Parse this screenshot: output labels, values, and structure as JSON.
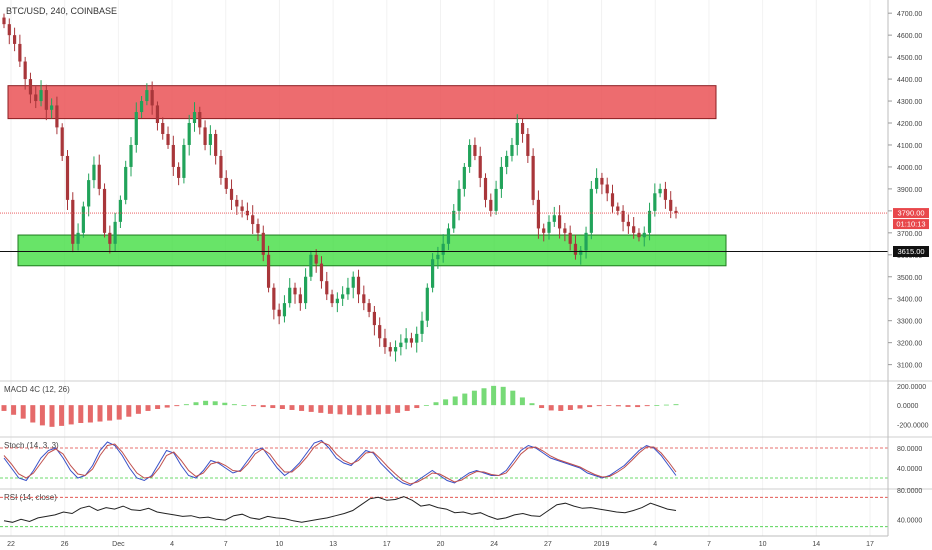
{
  "symbol_title": "BTC/USD, 240, COINBASE",
  "price_labels": {
    "last_price": "3790.00",
    "countdown": "01:10:13",
    "level": "3615.00"
  },
  "colors": {
    "up": "#21a35a",
    "down": "#a8363a",
    "red_zone": "#e8474b",
    "green_zone": "#3ddc3d",
    "stoch_k": "#3850c8",
    "stoch_d": "#c0504d",
    "rsi": "#222222"
  },
  "chart_data": [
    {
      "type": "candlestick",
      "title": "BTC/USD, 240, COINBASE",
      "x_tick_labels": [
        "22",
        "26",
        "Dec",
        "4",
        "7",
        "10",
        "13",
        "17",
        "20",
        "24",
        "27",
        "2019",
        "4",
        "7",
        "10",
        "14",
        "17"
      ],
      "y_ticks": [
        3100,
        3200,
        3300,
        3400,
        3500,
        3600,
        3700,
        3800,
        3900,
        4000,
        4100,
        4200,
        4300,
        4400,
        4500,
        4600,
        4700
      ],
      "y_tick_labels": [
        "3100.00",
        "3200.00",
        "3300.00",
        "3400.00",
        "3500.00",
        "3600.00",
        "3700.00",
        "3800.00",
        "3900.00",
        "4000.00",
        "4100.00",
        "4200.00",
        "4300.00",
        "4400.00",
        "4500.00",
        "4600.00",
        "4700.00"
      ],
      "ylim": [
        3030,
        4760
      ],
      "closes": [
        4650,
        4600,
        4560,
        4480,
        4400,
        4330,
        4300,
        4350,
        4260,
        4280,
        4180,
        4050,
        3850,
        3650,
        3700,
        3820,
        3940,
        4010,
        3900,
        3700,
        3650,
        3750,
        3850,
        4000,
        4100,
        4250,
        4300,
        4350,
        4280,
        4200,
        4150,
        4100,
        4000,
        3950,
        4100,
        4200,
        4250,
        4180,
        4100,
        4150,
        4050,
        3950,
        3900,
        3850,
        3820,
        3800,
        3780,
        3740,
        3700,
        3600,
        3450,
        3350,
        3320,
        3380,
        3450,
        3420,
        3380,
        3500,
        3600,
        3560,
        3480,
        3420,
        3380,
        3400,
        3420,
        3450,
        3500,
        3420,
        3380,
        3340,
        3280,
        3220,
        3180,
        3160,
        3180,
        3200,
        3220,
        3200,
        3240,
        3300,
        3450,
        3580,
        3600,
        3650,
        3720,
        3800,
        3900,
        4000,
        4100,
        4050,
        3950,
        3850,
        3800,
        3900,
        4000,
        4050,
        4100,
        4200,
        4150,
        4050,
        3850,
        3720,
        3700,
        3750,
        3780,
        3720,
        3700,
        3650,
        3600,
        3620,
        3700,
        3900,
        3950,
        3920,
        3880,
        3820,
        3800,
        3750,
        3730,
        3700,
        3680,
        3700,
        3800,
        3880,
        3900,
        3850,
        3800,
        3790
      ],
      "red_zone_price": [
        4220,
        4370
      ],
      "green_zone_price": [
        3550,
        3690
      ],
      "horizontal_levels": [
        3790,
        3615
      ],
      "panes": [
        {
          "name": "MACD 4C (12, 26)",
          "type": "histogram",
          "y_tick_labels": [
            "200.0000",
            "0.0000",
            "-200.0000"
          ],
          "y_ticks": [
            200,
            0,
            -200
          ],
          "ylim": [
            -320,
            240
          ],
          "values": [
            -60,
            -100,
            -140,
            -180,
            -210,
            -225,
            -215,
            -200,
            -185,
            -180,
            -170,
            -160,
            -150,
            -120,
            -90,
            -60,
            -40,
            -25,
            -10,
            10,
            30,
            45,
            40,
            25,
            10,
            0,
            -10,
            -20,
            -30,
            -40,
            -50,
            -60,
            -70,
            -80,
            -90,
            -95,
            -100,
            -105,
            -100,
            -95,
            -90,
            -80,
            -60,
            -30,
            0,
            30,
            60,
            90,
            120,
            150,
            175,
            200,
            190,
            150,
            80,
            20,
            -30,
            -55,
            -60,
            -50,
            -35,
            -20,
            -10,
            -8,
            -12,
            -18,
            -20,
            -10,
            0,
            5,
            10
          ]
        },
        {
          "name": "Stoch (14, 3, 3)",
          "type": "line",
          "y_tick_labels": [
            "80.0000",
            "40.0000"
          ],
          "y_ticks": [
            80,
            40
          ],
          "levels": [
            80,
            20
          ],
          "ylim": [
            0,
            100
          ],
          "series": [
            {
              "values": [
                60,
                40,
                20,
                15,
                35,
                60,
                75,
                80,
                60,
                35,
                20,
                25,
                45,
                75,
                92,
                85,
                65,
                40,
                20,
                15,
                25,
                50,
                75,
                70,
                45,
                25,
                20,
                35,
                55,
                50,
                40,
                30,
                35,
                55,
                75,
                80,
                60,
                40,
                25,
                35,
                50,
                70,
                90,
                95,
                80,
                60,
                50,
                45,
                60,
                75,
                70,
                50,
                35,
                20,
                10,
                5,
                15,
                25,
                35,
                25,
                15,
                10,
                20,
                30,
                35,
                30,
                25,
                25,
                35,
                55,
                75,
                85,
                80,
                70,
                60,
                55,
                50,
                45,
                40,
                30,
                25,
                20,
                25,
                35,
                45,
                60,
                75,
                85,
                80,
                65,
                45,
                25
              ]
            },
            {
              "values": [
                65,
                48,
                28,
                20,
                30,
                50,
                70,
                78,
                68,
                45,
                28,
                25,
                38,
                65,
                85,
                88,
                72,
                50,
                30,
                20,
                22,
                40,
                65,
                72,
                55,
                35,
                23,
                30,
                48,
                52,
                45,
                35,
                33,
                48,
                68,
                78,
                68,
                48,
                32,
                32,
                45,
                62,
                82,
                92,
                86,
                68,
                55,
                48,
                55,
                70,
                72,
                58,
                42,
                28,
                15,
                8,
                12,
                20,
                30,
                28,
                20,
                12,
                16,
                26,
                33,
                32,
                27,
                25,
                30,
                48,
                68,
                80,
                82,
                74,
                64,
                57,
                52,
                47,
                42,
                34,
                27,
                22,
                23,
                31,
                41,
                55,
                70,
                82,
                82,
                70,
                52,
                32
              ]
            }
          ]
        },
        {
          "name": "RSI (14, close)",
          "type": "line",
          "y_tick_labels": [
            "80.0000",
            "40.0000"
          ],
          "y_ticks": [
            80,
            40
          ],
          "levels": [
            70,
            30
          ],
          "ylim": [
            20,
            80
          ],
          "series": [
            {
              "values": [
                38,
                36,
                40,
                37,
                42,
                44,
                46,
                50,
                48,
                55,
                58,
                52,
                56,
                54,
                58,
                53,
                52,
                55,
                50,
                48,
                46,
                44,
                45,
                42,
                43,
                40,
                39,
                45,
                47,
                42,
                40,
                44,
                42,
                41,
                38,
                36,
                38,
                40,
                42,
                45,
                48,
                52,
                60,
                68,
                70,
                66,
                67,
                71,
                66,
                58,
                60,
                56,
                54,
                49,
                50,
                47,
                49,
                44,
                40,
                42,
                46,
                48,
                45,
                44,
                52,
                60,
                62,
                58,
                55,
                56,
                54,
                52,
                50,
                49,
                52,
                56,
                62,
                58,
                54,
                52
              ]
            }
          ]
        }
      ]
    }
  ]
}
